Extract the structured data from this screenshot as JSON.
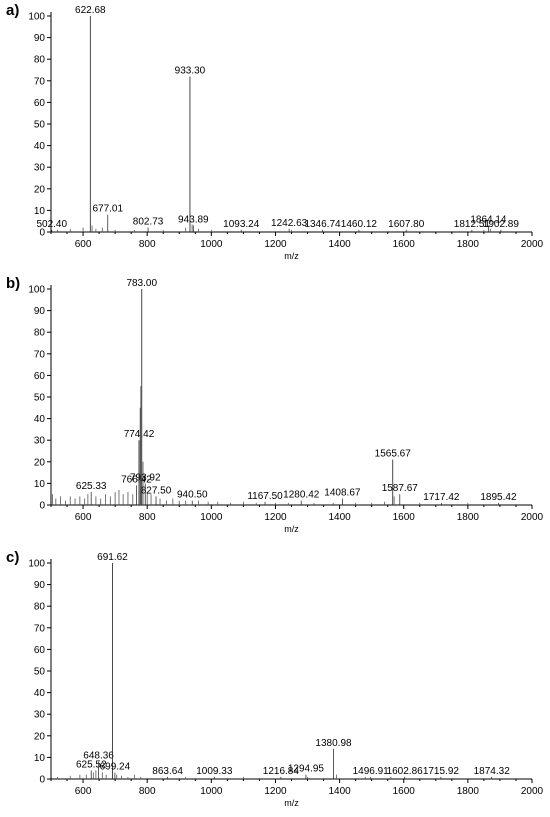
{
  "chart_data": [
    {
      "panel_label": "a)",
      "type": "line",
      "xlabel": "m/z",
      "ylabel": "",
      "xlim": [
        500,
        2000
      ],
      "ylim": [
        0,
        100
      ],
      "x_ticks": [
        "600",
        "800",
        "1000",
        "1200",
        "1400",
        "1600",
        "1800",
        "2000"
      ],
      "y_ticks": [
        "0",
        "10",
        "20",
        "30",
        "40",
        "50",
        "60",
        "70",
        "80",
        "90",
        "100"
      ],
      "peaks": [
        {
          "mz": 502.4,
          "intensity": 1,
          "label": "502.40"
        },
        {
          "mz": 622.68,
          "intensity": 100,
          "label": "622.68"
        },
        {
          "mz": 677.01,
          "intensity": 8,
          "label": "677.01"
        },
        {
          "mz": 802.73,
          "intensity": 2,
          "label": "802.73"
        },
        {
          "mz": 933.3,
          "intensity": 72,
          "label": "933.30"
        },
        {
          "mz": 943.89,
          "intensity": 3,
          "label": "943.89"
        },
        {
          "mz": 1093.24,
          "intensity": 1,
          "label": "1093.24"
        },
        {
          "mz": 1242.63,
          "intensity": 1.5,
          "label": "1242.63"
        },
        {
          "mz": 1346.74,
          "intensity": 1,
          "label": "1346.74"
        },
        {
          "mz": 1460.12,
          "intensity": 1,
          "label": "1460.12"
        },
        {
          "mz": 1607.8,
          "intensity": 1,
          "label": "1607.80"
        },
        {
          "mz": 1812.51,
          "intensity": 1,
          "label": "1812.51"
        },
        {
          "mz": 1864.14,
          "intensity": 3,
          "label": "1864.14"
        },
        {
          "mz": 1902.89,
          "intensity": 1,
          "label": "1902.89"
        }
      ],
      "minor_peaks": [
        {
          "mz": 520,
          "intensity": 1
        },
        {
          "mz": 560,
          "intensity": 1.5
        },
        {
          "mz": 600,
          "intensity": 2
        },
        {
          "mz": 628,
          "intensity": 3
        },
        {
          "mz": 640,
          "intensity": 1.5
        },
        {
          "mz": 660,
          "intensity": 2
        },
        {
          "mz": 700,
          "intensity": 1
        },
        {
          "mz": 760,
          "intensity": 1
        },
        {
          "mz": 850,
          "intensity": 1
        },
        {
          "mz": 920,
          "intensity": 2
        },
        {
          "mz": 940,
          "intensity": 3.5
        },
        {
          "mz": 960,
          "intensity": 1.5
        },
        {
          "mz": 1000,
          "intensity": 1
        },
        {
          "mz": 1250,
          "intensity": 1
        },
        {
          "mz": 1850,
          "intensity": 1
        },
        {
          "mz": 1870,
          "intensity": 1.5
        }
      ]
    },
    {
      "panel_label": "b)",
      "type": "line",
      "xlabel": "m/z",
      "ylabel": "",
      "xlim": [
        500,
        2000
      ],
      "ylim": [
        0,
        100
      ],
      "x_ticks": [
        "600",
        "800",
        "1000",
        "1200",
        "1400",
        "1600",
        "1800",
        "2000"
      ],
      "y_ticks": [
        "0",
        "10",
        "20",
        "30",
        "40",
        "50",
        "60",
        "70",
        "80",
        "90",
        "100"
      ],
      "peaks": [
        {
          "mz": 625.33,
          "intensity": 6,
          "label": "625.33"
        },
        {
          "mz": 766.42,
          "intensity": 9,
          "label": "766.42"
        },
        {
          "mz": 774.42,
          "intensity": 30,
          "label": "774.42"
        },
        {
          "mz": 783.0,
          "intensity": 100,
          "label": "783.00"
        },
        {
          "mz": 793.92,
          "intensity": 10,
          "label": "793.92"
        },
        {
          "mz": 827.5,
          "intensity": 4,
          "label": "827.50"
        },
        {
          "mz": 940.5,
          "intensity": 2,
          "label": "940.50"
        },
        {
          "mz": 1167.5,
          "intensity": 1.5,
          "label": "1167.50"
        },
        {
          "mz": 1280.42,
          "intensity": 2,
          "label": "1280.42"
        },
        {
          "mz": 1408.67,
          "intensity": 3,
          "label": "1408.67"
        },
        {
          "mz": 1565.67,
          "intensity": 21,
          "label": "1565.67"
        },
        {
          "mz": 1587.67,
          "intensity": 5,
          "label": "1587.67"
        },
        {
          "mz": 1717.42,
          "intensity": 1,
          "label": "1717.42"
        },
        {
          "mz": 1895.42,
          "intensity": 1,
          "label": "1895.42"
        }
      ],
      "minor_peaks": [
        {
          "mz": 505,
          "intensity": 5
        },
        {
          "mz": 515,
          "intensity": 3
        },
        {
          "mz": 530,
          "intensity": 4
        },
        {
          "mz": 545,
          "intensity": 2
        },
        {
          "mz": 560,
          "intensity": 4
        },
        {
          "mz": 575,
          "intensity": 3
        },
        {
          "mz": 590,
          "intensity": 4
        },
        {
          "mz": 605,
          "intensity": 3
        },
        {
          "mz": 615,
          "intensity": 5
        },
        {
          "mz": 640,
          "intensity": 4
        },
        {
          "mz": 655,
          "intensity": 3
        },
        {
          "mz": 670,
          "intensity": 5
        },
        {
          "mz": 685,
          "intensity": 4
        },
        {
          "mz": 700,
          "intensity": 6
        },
        {
          "mz": 712,
          "intensity": 7
        },
        {
          "mz": 725,
          "intensity": 5
        },
        {
          "mz": 740,
          "intensity": 6
        },
        {
          "mz": 755,
          "intensity": 5
        },
        {
          "mz": 778,
          "intensity": 45
        },
        {
          "mz": 780,
          "intensity": 55
        },
        {
          "mz": 787,
          "intensity": 20
        },
        {
          "mz": 800,
          "intensity": 6
        },
        {
          "mz": 812,
          "intensity": 5
        },
        {
          "mz": 840,
          "intensity": 3
        },
        {
          "mz": 860,
          "intensity": 2
        },
        {
          "mz": 880,
          "intensity": 3
        },
        {
          "mz": 900,
          "intensity": 2
        },
        {
          "mz": 920,
          "intensity": 2
        },
        {
          "mz": 960,
          "intensity": 2
        },
        {
          "mz": 990,
          "intensity": 1.5
        },
        {
          "mz": 1020,
          "intensity": 1.5
        },
        {
          "mz": 1060,
          "intensity": 1
        },
        {
          "mz": 1100,
          "intensity": 1.5
        },
        {
          "mz": 1140,
          "intensity": 1
        },
        {
          "mz": 1200,
          "intensity": 1
        },
        {
          "mz": 1240,
          "intensity": 1
        },
        {
          "mz": 1320,
          "intensity": 1
        },
        {
          "mz": 1380,
          "intensity": 1
        },
        {
          "mz": 1450,
          "intensity": 1
        },
        {
          "mz": 1500,
          "intensity": 1
        },
        {
          "mz": 1540,
          "intensity": 1.5
        },
        {
          "mz": 1570,
          "intensity": 4
        },
        {
          "mz": 1650,
          "intensity": 1
        },
        {
          "mz": 1800,
          "intensity": 1
        }
      ]
    },
    {
      "panel_label": "c)",
      "type": "line",
      "xlabel": "m/z",
      "ylabel": "",
      "xlim": [
        500,
        2000
      ],
      "ylim": [
        0,
        100
      ],
      "x_ticks": [
        "600",
        "800",
        "1000",
        "1200",
        "1400",
        "1600",
        "1800",
        "2000"
      ],
      "y_ticks": [
        "0",
        "10",
        "20",
        "30",
        "40",
        "50",
        "60",
        "70",
        "80",
        "90",
        "100"
      ],
      "peaks": [
        {
          "mz": 625.52,
          "intensity": 4,
          "label": "625.52"
        },
        {
          "mz": 648.36,
          "intensity": 8,
          "label": "648.36"
        },
        {
          "mz": 691.62,
          "intensity": 100,
          "label": "691.62"
        },
        {
          "mz": 699.24,
          "intensity": 3,
          "label": "699.24"
        },
        {
          "mz": 863.64,
          "intensity": 1,
          "label": "863.64"
        },
        {
          "mz": 1009.33,
          "intensity": 1,
          "label": "1009.33"
        },
        {
          "mz": 1216.84,
          "intensity": 1,
          "label": "1216.84"
        },
        {
          "mz": 1294.95,
          "intensity": 2,
          "label": "1294.95"
        },
        {
          "mz": 1380.98,
          "intensity": 14,
          "label": "1380.98"
        },
        {
          "mz": 1496.91,
          "intensity": 1,
          "label": "1496.91"
        },
        {
          "mz": 1602.86,
          "intensity": 1,
          "label": "1602.86"
        },
        {
          "mz": 1715.92,
          "intensity": 1,
          "label": "1715.92"
        },
        {
          "mz": 1874.32,
          "intensity": 1,
          "label": "1874.32"
        }
      ],
      "minor_peaks": [
        {
          "mz": 520,
          "intensity": 1
        },
        {
          "mz": 560,
          "intensity": 1.5
        },
        {
          "mz": 590,
          "intensity": 2
        },
        {
          "mz": 610,
          "intensity": 2
        },
        {
          "mz": 632,
          "intensity": 3
        },
        {
          "mz": 640,
          "intensity": 4
        },
        {
          "mz": 660,
          "intensity": 3
        },
        {
          "mz": 672,
          "intensity": 2
        },
        {
          "mz": 705,
          "intensity": 2
        },
        {
          "mz": 720,
          "intensity": 1.5
        },
        {
          "mz": 740,
          "intensity": 1
        },
        {
          "mz": 760,
          "intensity": 2
        },
        {
          "mz": 780,
          "intensity": 1
        },
        {
          "mz": 920,
          "intensity": 1
        },
        {
          "mz": 1100,
          "intensity": 1
        },
        {
          "mz": 1300,
          "intensity": 1
        },
        {
          "mz": 1390,
          "intensity": 2
        },
        {
          "mz": 1480,
          "intensity": 1
        },
        {
          "mz": 1560,
          "intensity": 1
        }
      ]
    }
  ]
}
